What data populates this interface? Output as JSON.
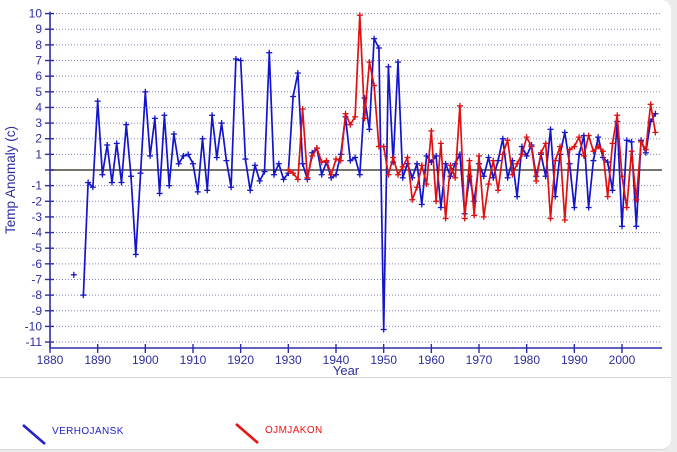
{
  "page": {
    "background": "#ececec",
    "card_background": "#ffffff"
  },
  "axis": {
    "xlabel": "Year",
    "ylabel": "Temp Anomaly (c)"
  },
  "legend": {
    "items": [
      {
        "label": "VERHOJANSK",
        "color": "#2222cc",
        "swatch": "diagonal-line-icon"
      },
      {
        "label": "OJMJAKON",
        "color": "#ee1111",
        "swatch": "diagonal-line-icon"
      }
    ]
  },
  "colors": {
    "axis": "#2d2da8",
    "tick_text": "#2d2da0",
    "grid": "#8585bb",
    "zero_line": "#63635a",
    "verhojansk": "#1414cc",
    "ojmjakon": "#e01010"
  },
  "chart_data": {
    "type": "line",
    "title": "",
    "xlabel": "Year",
    "ylabel": "Temp Anomaly (c)",
    "xlim": [
      1880,
      2008
    ],
    "ylim": [
      -11,
      10
    ],
    "x_ticks": [
      1880,
      1890,
      1900,
      1910,
      1920,
      1930,
      1940,
      1950,
      1960,
      1970,
      1980,
      1990,
      2000
    ],
    "y_ticks": [
      10,
      9,
      8,
      7,
      6,
      5,
      4,
      3,
      2,
      1,
      -1,
      -2,
      -3,
      -4,
      -5,
      -6,
      -7,
      -8,
      -9,
      -10,
      -11
    ],
    "zero_line": true,
    "zero_label_hidden": true,
    "grid": "horizontal-dotted",
    "legend_position": "bottom",
    "marker": "plus",
    "series": [
      {
        "name": "VERHOJANSK",
        "color": "#1414cc",
        "isolated_points": [
          [
            1885,
            -6.7
          ]
        ],
        "points": [
          [
            1887,
            -8.0
          ],
          [
            1888,
            -0.8
          ],
          [
            1889,
            -1.1
          ],
          [
            1890,
            4.4
          ],
          [
            1891,
            -0.3
          ],
          [
            1892,
            1.6
          ],
          [
            1893,
            -0.8
          ],
          [
            1894,
            1.7
          ],
          [
            1895,
            -0.8
          ],
          [
            1896,
            2.9
          ],
          [
            1897,
            -0.4
          ],
          [
            1898,
            -5.4
          ],
          [
            1899,
            -0.2
          ],
          [
            1900,
            5.0
          ],
          [
            1901,
            0.9
          ],
          [
            1902,
            3.3
          ],
          [
            1903,
            -1.5
          ],
          [
            1904,
            3.5
          ],
          [
            1905,
            -1.0
          ],
          [
            1906,
            2.3
          ],
          [
            1907,
            0.4
          ],
          [
            1908,
            0.9
          ],
          [
            1909,
            1.0
          ],
          [
            1910,
            0.4
          ],
          [
            1911,
            -1.4
          ],
          [
            1912,
            2.0
          ],
          [
            1913,
            -1.3
          ],
          [
            1914,
            3.5
          ],
          [
            1915,
            0.8
          ],
          [
            1916,
            3.0
          ],
          [
            1917,
            0.6
          ],
          [
            1918,
            -1.1
          ],
          [
            1919,
            7.1
          ],
          [
            1920,
            7.0
          ],
          [
            1921,
            0.7
          ],
          [
            1922,
            -1.3
          ],
          [
            1923,
            0.3
          ],
          [
            1924,
            -0.7
          ],
          [
            1925,
            -0.1
          ],
          [
            1926,
            7.5
          ],
          [
            1927,
            -0.3
          ],
          [
            1928,
            0.4
          ],
          [
            1929,
            -0.6
          ],
          [
            1930,
            -0.2
          ],
          [
            1931,
            4.7
          ],
          [
            1932,
            6.2
          ],
          [
            1933,
            0.4
          ],
          [
            1934,
            -0.6
          ],
          [
            1935,
            1.1
          ],
          [
            1936,
            1.4
          ],
          [
            1937,
            -0.3
          ],
          [
            1938,
            0.5
          ],
          [
            1939,
            -0.5
          ],
          [
            1940,
            -0.3
          ],
          [
            1941,
            1.0
          ],
          [
            1942,
            3.4
          ],
          [
            1943,
            0.6
          ],
          [
            1944,
            0.8
          ],
          [
            1945,
            -0.3
          ],
          [
            1946,
            4.6
          ],
          [
            1947,
            2.6
          ],
          [
            1948,
            8.4
          ],
          [
            1949,
            7.8
          ],
          [
            1950,
            -10.2
          ],
          [
            1951,
            6.6
          ],
          [
            1952,
            0.5
          ],
          [
            1953,
            6.9
          ],
          [
            1954,
            -0.5
          ],
          [
            1955,
            0.4
          ],
          [
            1956,
            -0.5
          ],
          [
            1957,
            0.4
          ],
          [
            1958,
            -2.2
          ],
          [
            1959,
            0.9
          ],
          [
            1960,
            0.5
          ],
          [
            1961,
            0.9
          ],
          [
            1962,
            -2.4
          ],
          [
            1963,
            0.4
          ],
          [
            1964,
            -0.4
          ],
          [
            1965,
            0.4
          ],
          [
            1966,
            1.0
          ],
          [
            1967,
            -2.8
          ],
          [
            1968,
            -0.4
          ],
          [
            1969,
            -2.0
          ],
          [
            1970,
            0.4
          ],
          [
            1971,
            -0.4
          ],
          [
            1972,
            0.8
          ],
          [
            1973,
            -0.5
          ],
          [
            1974,
            0.6
          ],
          [
            1975,
            2.0
          ],
          [
            1976,
            -0.5
          ],
          [
            1977,
            0.6
          ],
          [
            1978,
            -1.7
          ],
          [
            1979,
            1.5
          ],
          [
            1980,
            0.9
          ],
          [
            1981,
            1.6
          ],
          [
            1982,
            -0.4
          ],
          [
            1983,
            1.0
          ],
          [
            1984,
            -0.4
          ],
          [
            1985,
            2.6
          ],
          [
            1986,
            -1.7
          ],
          [
            1987,
            1.0
          ],
          [
            1988,
            2.4
          ],
          [
            1989,
            0.4
          ],
          [
            1990,
            -2.4
          ],
          [
            1991,
            1.0
          ],
          [
            1992,
            2.2
          ],
          [
            1993,
            -2.4
          ],
          [
            1994,
            0.6
          ],
          [
            1995,
            2.1
          ],
          [
            1996,
            0.8
          ],
          [
            1997,
            0.5
          ],
          [
            1998,
            -1.3
          ],
          [
            1999,
            3.1
          ],
          [
            2000,
            -3.6
          ],
          [
            2001,
            1.9
          ],
          [
            2002,
            1.8
          ],
          [
            2003,
            -3.6
          ],
          [
            2004,
            1.9
          ],
          [
            2005,
            1.1
          ],
          [
            2006,
            3.1
          ],
          [
            2007,
            3.6
          ]
        ]
      },
      {
        "name": "OJMJAKON",
        "color": "#e01010",
        "isolated_points": [],
        "points": [
          [
            1930,
            0.0
          ],
          [
            1931,
            -0.2
          ],
          [
            1932,
            -0.6
          ],
          [
            1933,
            3.9
          ],
          [
            1934,
            -0.5
          ],
          [
            1935,
            0.9
          ],
          [
            1936,
            1.4
          ],
          [
            1937,
            0.5
          ],
          [
            1938,
            0.6
          ],
          [
            1939,
            -0.3
          ],
          [
            1940,
            0.7
          ],
          [
            1941,
            0.6
          ],
          [
            1942,
            3.6
          ],
          [
            1943,
            2.9
          ],
          [
            1944,
            3.4
          ],
          [
            1945,
            9.9
          ],
          [
            1946,
            3.3
          ],
          [
            1947,
            6.9
          ],
          [
            1948,
            5.4
          ],
          [
            1949,
            1.5
          ],
          [
            1950,
            1.5
          ],
          [
            1951,
            -0.3
          ],
          [
            1952,
            0.8
          ],
          [
            1953,
            -0.3
          ],
          [
            1954,
            0.2
          ],
          [
            1955,
            0.8
          ],
          [
            1956,
            -1.9
          ],
          [
            1957,
            -1.1
          ],
          [
            1958,
            0.3
          ],
          [
            1959,
            -0.9
          ],
          [
            1960,
            2.5
          ],
          [
            1961,
            -2.0
          ],
          [
            1962,
            1.7
          ],
          [
            1963,
            -3.1
          ],
          [
            1964,
            0.3
          ],
          [
            1965,
            -0.5
          ],
          [
            1966,
            4.1
          ],
          [
            1967,
            -3.1
          ],
          [
            1968,
            0.6
          ],
          [
            1969,
            -2.9
          ],
          [
            1970,
            0.9
          ],
          [
            1971,
            -3.0
          ],
          [
            1972,
            -0.9
          ],
          [
            1973,
            0.6
          ],
          [
            1974,
            -1.3
          ],
          [
            1975,
            1.0
          ],
          [
            1976,
            1.9
          ],
          [
            1977,
            -0.3
          ],
          [
            1978,
            0.4
          ],
          [
            1979,
            1.0
          ],
          [
            1980,
            2.1
          ],
          [
            1981,
            1.5
          ],
          [
            1982,
            -0.7
          ],
          [
            1983,
            1.1
          ],
          [
            1984,
            1.7
          ],
          [
            1985,
            -3.1
          ],
          [
            1986,
            0.6
          ],
          [
            1987,
            1.5
          ],
          [
            1988,
            -3.2
          ],
          [
            1989,
            1.3
          ],
          [
            1990,
            1.5
          ],
          [
            1991,
            2.1
          ],
          [
            1992,
            0.9
          ],
          [
            1993,
            2.2
          ],
          [
            1994,
            1.2
          ],
          [
            1995,
            1.5
          ],
          [
            1996,
            1.2
          ],
          [
            1997,
            -1.7
          ],
          [
            1998,
            1.7
          ],
          [
            1999,
            3.5
          ],
          [
            2000,
            -0.4
          ],
          [
            2001,
            -2.4
          ],
          [
            2002,
            1.2
          ],
          [
            2003,
            -1.9
          ],
          [
            2004,
            1.8
          ],
          [
            2005,
            1.3
          ],
          [
            2006,
            4.2
          ],
          [
            2007,
            2.4
          ]
        ]
      }
    ]
  }
}
